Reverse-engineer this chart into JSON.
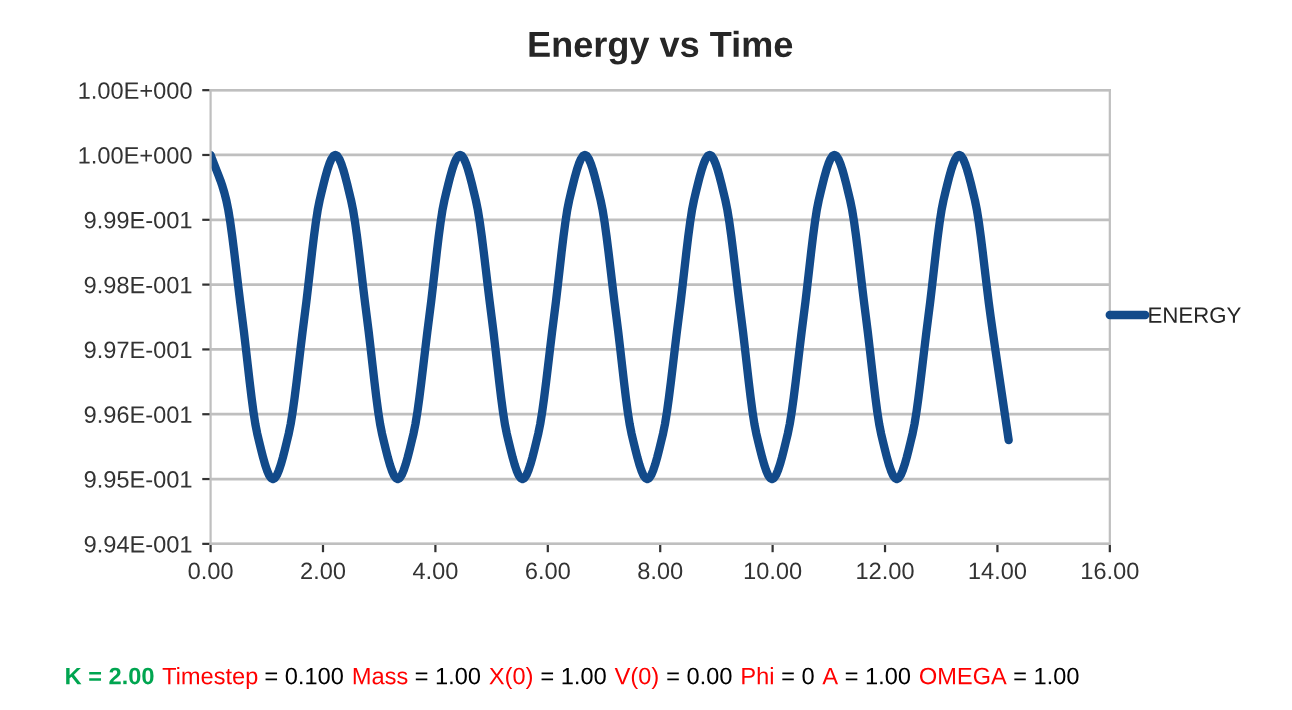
{
  "chart_data": {
    "type": "line",
    "title": "Energy vs Time",
    "x": [
      0,
      0.28,
      0.56,
      0.83,
      1.11,
      1.39,
      1.67,
      1.94,
      2.22,
      2.5,
      2.78,
      3.05,
      3.33,
      3.61,
      3.89,
      4.16,
      4.44,
      4.72,
      5.0,
      5.27,
      5.55,
      5.83,
      6.11,
      6.38,
      6.66,
      6.94,
      7.22,
      7.49,
      7.77,
      8.05,
      8.33,
      8.6,
      8.88,
      9.16,
      9.44,
      9.71,
      9.99,
      10.27,
      10.55,
      10.82,
      11.1,
      11.38,
      11.66,
      11.93,
      12.21,
      12.49,
      12.77,
      13.04,
      13.32,
      13.6,
      13.88,
      14.2
    ],
    "series": [
      {
        "name": "ENERGY",
        "color": "#124a8a",
        "values": [
          1.0,
          0.9993,
          0.9975,
          0.9957,
          0.995,
          0.9957,
          0.9975,
          0.9993,
          1.0,
          0.9993,
          0.9975,
          0.9957,
          0.995,
          0.9957,
          0.9975,
          0.9993,
          1.0,
          0.9993,
          0.9975,
          0.9957,
          0.995,
          0.9957,
          0.9975,
          0.9993,
          1.0,
          0.9993,
          0.9975,
          0.9957,
          0.995,
          0.9957,
          0.9975,
          0.9993,
          1.0,
          0.9993,
          0.9975,
          0.9957,
          0.995,
          0.9957,
          0.9975,
          0.9993,
          1.0,
          0.9993,
          0.9975,
          0.9957,
          0.995,
          0.9957,
          0.9975,
          0.9993,
          1.0,
          0.9993,
          0.9975,
          0.9956
        ]
      }
    ],
    "xlim": [
      0,
      16
    ],
    "xticks": [
      {
        "value": 0,
        "label": "0.00"
      },
      {
        "value": 2,
        "label": "2.00"
      },
      {
        "value": 4,
        "label": "4.00"
      },
      {
        "value": 6,
        "label": "6.00"
      },
      {
        "value": 8,
        "label": "8.00"
      },
      {
        "value": 10,
        "label": "10.00"
      },
      {
        "value": 12,
        "label": "12.00"
      },
      {
        "value": 14,
        "label": "14.00"
      },
      {
        "value": 16,
        "label": "16.00"
      }
    ],
    "ylim": [
      0.994,
      1.001
    ],
    "yticks": [
      {
        "value": 0.994,
        "label": "9.94E-001"
      },
      {
        "value": 0.995,
        "label": "9.95E-001"
      },
      {
        "value": 0.996,
        "label": "9.96E-001"
      },
      {
        "value": 0.997,
        "label": "9.97E-001"
      },
      {
        "value": 0.998,
        "label": "9.98E-001"
      },
      {
        "value": 0.999,
        "label": "9.99E-001"
      },
      {
        "value": 1.0,
        "label": "1.00E+000"
      },
      {
        "value": 1.001,
        "label": "1.00E+000"
      }
    ],
    "grid": "y",
    "legend": "right",
    "marker": "none",
    "line_style": "solid",
    "annotations": [
      "K = 2.00",
      "Timestep = 0.100",
      "Mass = 1.00",
      "X(0) = 1.00",
      "V(0) = 0.00",
      "Phi = 0",
      "A = 1.00",
      "OMEGA = 1.00"
    ]
  }
}
